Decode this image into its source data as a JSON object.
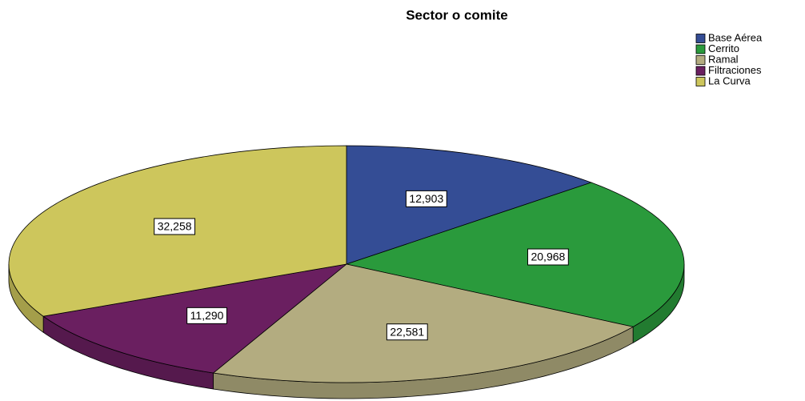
{
  "chart_data": {
    "type": "pie3d",
    "title": "Sector o comite",
    "categories": [
      "Base Aérea",
      "Cerrito",
      "Ramal",
      "Filtraciones",
      "La Curva"
    ],
    "values": [
      12.903,
      20.968,
      22.581,
      11.29,
      32.258
    ],
    "value_labels": [
      "12,903",
      "20,968",
      "22,581",
      "11,290",
      "32,258"
    ],
    "colors": [
      "#344d95",
      "#2a9a3c",
      "#b3ac80",
      "#6a1f60",
      "#cdc65c"
    ],
    "legend": "top-right"
  }
}
